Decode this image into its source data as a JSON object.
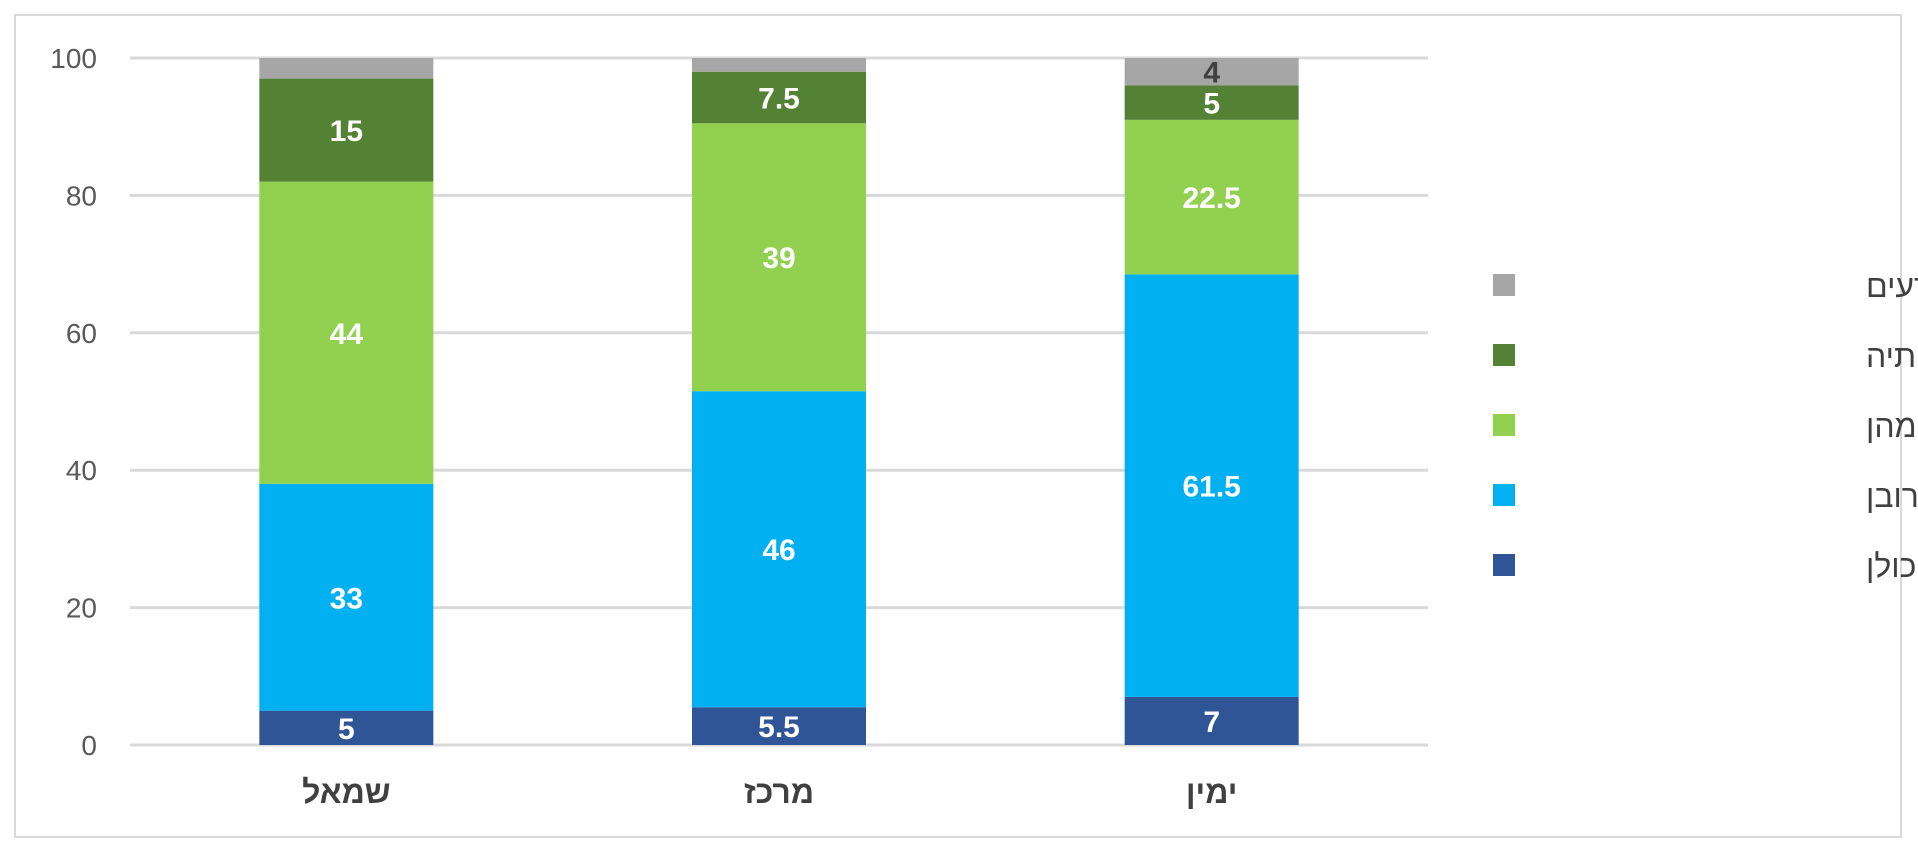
{
  "chart_data": {
    "type": "bar",
    "stacked": true,
    "categories": [
      "שמאל",
      "מרכז",
      "ימין"
    ],
    "ylim": [
      0,
      100
    ],
    "yticks": [
      0,
      20,
      40,
      60,
      80,
      100
    ],
    "grid": true,
    "legend_position": "right",
    "series": [
      {
        "name": "השיגה את כולן",
        "color": "#2f5597",
        "values": [
          5,
          5.5,
          7
        ],
        "labels": [
          "5",
          "5.5",
          "7"
        ],
        "label_color": "#ffffff"
      },
      {
        "name": "השיגה את רובן",
        "color": "#00b0f0",
        "values": [
          33,
          46,
          61.5
        ],
        "labels": [
          "33",
          "46",
          "61.5"
        ],
        "label_color": "#ffffff"
      },
      {
        "name": "השיגה רק מעט מהן",
        "color": "#92d050",
        "values": [
          44,
          39,
          22.5
        ],
        "labels": [
          "44",
          "39",
          "22.5"
        ],
        "label_color": "#ffffff"
      },
      {
        "name": "לא השיגה את מטרותיה",
        "color": "#548235",
        "values": [
          15,
          7.5,
          5
        ],
        "labels": [
          "15",
          "7.5",
          "5"
        ],
        "label_color": "#ffffff"
      },
      {
        "name": "לא יודעים",
        "color": "#a6a6a6",
        "values": [
          3,
          2,
          4
        ],
        "labels": [
          "",
          "",
          "4"
        ],
        "label_color": "#404040"
      }
    ]
  }
}
